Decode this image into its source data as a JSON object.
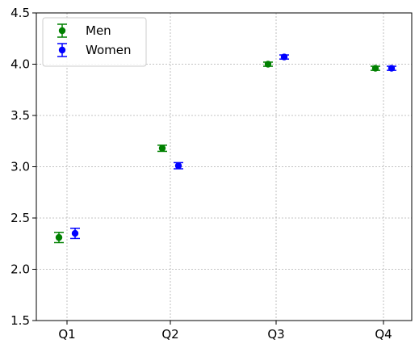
{
  "chart_data": {
    "type": "scatter",
    "categories": [
      "Q1",
      "Q2",
      "Q3",
      "Q4"
    ],
    "ylim": [
      1.5,
      4.5
    ],
    "yticks": [
      "1.5",
      "2.0",
      "2.5",
      "3.0",
      "3.5",
      "4.0",
      "4.5"
    ],
    "grid": true,
    "legend_position": "top-left",
    "series": [
      {
        "name": "Men",
        "color": "#008000",
        "values": [
          2.31,
          3.18,
          4.0,
          3.96
        ],
        "errors": [
          0.05,
          0.03,
          0.02,
          0.02
        ]
      },
      {
        "name": "Women",
        "color": "#0000ff",
        "values": [
          2.35,
          3.01,
          4.07,
          3.96
        ],
        "errors": [
          0.05,
          0.03,
          0.02,
          0.02
        ]
      }
    ]
  }
}
